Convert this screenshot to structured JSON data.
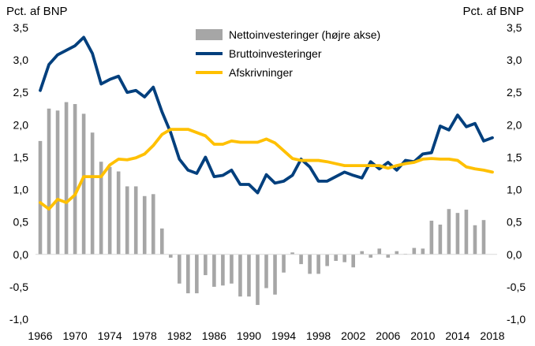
{
  "chart_data": {
    "type": "bar+line",
    "x_ticks": [
      "1966",
      "1970",
      "1974",
      "1978",
      "1982",
      "1986",
      "1990",
      "1994",
      "1998",
      "2002",
      "2006",
      "2010",
      "2014",
      "2018"
    ],
    "y_left": {
      "label": "Pct. af BNP",
      "ylim": [
        -1.0,
        3.5
      ],
      "ticks": [
        "3,5",
        "3,0",
        "2,5",
        "2,0",
        "1,5",
        "1,0",
        "0,5",
        "0,0",
        "-0,5",
        "-1,0"
      ]
    },
    "y_right": {
      "label": "Pct. af BNP",
      "ylim": [
        -1.0,
        3.5
      ],
      "ticks": [
        "3,5",
        "3,0",
        "2,5",
        "2,0",
        "1,5",
        "1,0",
        "0,5",
        "0,0",
        "-0,5",
        "-1,0"
      ]
    },
    "years": [
      1966,
      1967,
      1968,
      1969,
      1970,
      1971,
      1972,
      1973,
      1974,
      1975,
      1976,
      1977,
      1978,
      1979,
      1980,
      1981,
      1982,
      1983,
      1984,
      1985,
      1986,
      1987,
      1988,
      1989,
      1990,
      1991,
      1992,
      1993,
      1994,
      1995,
      1996,
      1997,
      1998,
      1999,
      2000,
      2001,
      2002,
      2003,
      2004,
      2005,
      2006,
      2007,
      2008,
      2009,
      2010,
      2011,
      2012,
      2013,
      2014,
      2015,
      2016,
      2017,
      2018
    ],
    "series": [
      {
        "name": "Nettoinvesteringer (højre akse)",
        "kind": "bar",
        "color": "#a6a6a6",
        "values": [
          1.75,
          2.25,
          2.22,
          2.35,
          2.32,
          2.17,
          1.88,
          1.43,
          1.35,
          1.28,
          1.05,
          1.05,
          0.9,
          0.93,
          0.4,
          -0.05,
          -0.45,
          -0.6,
          -0.6,
          -0.32,
          -0.5,
          -0.48,
          -0.45,
          -0.65,
          -0.65,
          -0.78,
          -0.52,
          -0.62,
          -0.28,
          0.03,
          -0.15,
          -0.3,
          -0.3,
          -0.18,
          -0.1,
          -0.12,
          -0.2,
          0.05,
          -0.05,
          0.09,
          -0.05,
          0.05,
          0.01,
          0.1,
          0.09,
          0.52,
          0.46,
          0.7,
          0.64,
          0.69,
          0.45,
          0.53,
          0.0
        ]
      },
      {
        "name": "Bruttoinvesteringer",
        "kind": "line",
        "color": "#003f7d",
        "values": [
          2.53,
          2.93,
          3.08,
          3.15,
          3.22,
          3.35,
          3.1,
          2.63,
          2.7,
          2.75,
          2.5,
          2.53,
          2.43,
          2.58,
          2.2,
          1.88,
          1.47,
          1.3,
          1.25,
          1.5,
          1.2,
          1.22,
          1.3,
          1.08,
          1.08,
          0.95,
          1.23,
          1.1,
          1.13,
          1.22,
          1.47,
          1.35,
          1.13,
          1.13,
          1.2,
          1.27,
          1.22,
          1.18,
          1.43,
          1.32,
          1.42,
          1.3,
          1.45,
          1.43,
          1.55,
          1.57,
          1.98,
          1.92,
          2.15,
          1.97,
          2.02,
          1.75,
          1.8
        ]
      },
      {
        "name": "Afskrivninger",
        "kind": "line",
        "color": "#ffc000",
        "values": [
          0.8,
          0.7,
          0.85,
          0.8,
          0.92,
          1.2,
          1.2,
          1.2,
          1.38,
          1.47,
          1.46,
          1.49,
          1.55,
          1.68,
          1.85,
          1.93,
          1.93,
          1.93,
          1.88,
          1.83,
          1.7,
          1.7,
          1.75,
          1.73,
          1.73,
          1.73,
          1.78,
          1.72,
          1.6,
          1.48,
          1.45,
          1.45,
          1.45,
          1.43,
          1.4,
          1.37,
          1.37,
          1.37,
          1.37,
          1.37,
          1.33,
          1.37,
          1.4,
          1.42,
          1.47,
          1.48,
          1.47,
          1.47,
          1.45,
          1.35,
          1.32,
          1.3,
          1.27
        ]
      }
    ],
    "grid": false,
    "legend_placement": "top-center"
  }
}
